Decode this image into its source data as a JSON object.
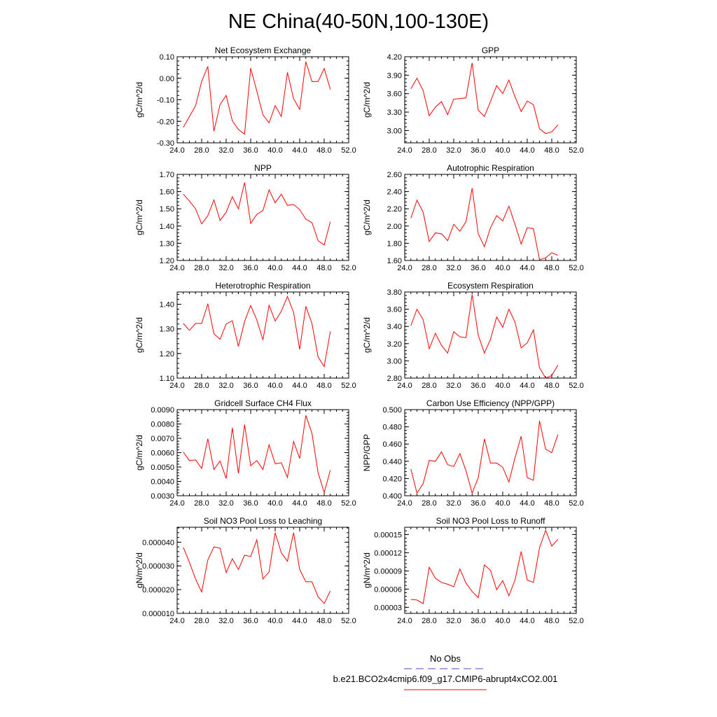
{
  "title": "NE China(40-50N,100-130E)",
  "colors": {
    "model_line": "#ff0000",
    "obs_line": "#4b4bc8",
    "axis": "#000000"
  },
  "legend": {
    "obs_label": "No Obs",
    "model_label": "b.e21.BCO2x4cmip6.f09_g17.CMIP6-abrupt4xCO2.001"
  },
  "chart_data": [
    {
      "type": "line",
      "title": "Net Ecosystem Exchange",
      "xlabel": "",
      "ylabel": "gC/m^2/d",
      "xlim": [
        24,
        52
      ],
      "ylim": [
        -0.3,
        0.1
      ],
      "xticks": [
        "24.0",
        "28.0",
        "32.0",
        "36.0",
        "40.0",
        "44.0",
        "48.0",
        "52.0"
      ],
      "yticks": [
        "-0.30",
        "-0.20",
        "-0.10",
        "0.00",
        "0.10"
      ],
      "x": [
        25,
        26,
        27,
        28,
        29,
        30,
        31,
        32,
        33,
        34,
        35,
        36,
        37,
        38,
        39,
        40,
        41,
        42,
        43,
        44,
        45,
        46,
        47,
        48,
        49
      ],
      "series": [
        {
          "name": "b.e21.BCO2x4cmip6.f09_g17.CMIP6-abrupt4xCO2.001",
          "values": [
            -0.228,
            -0.178,
            -0.128,
            -0.015,
            0.055,
            -0.246,
            -0.122,
            -0.08,
            -0.198,
            -0.238,
            -0.26,
            0.047,
            -0.06,
            -0.17,
            -0.207,
            -0.127,
            -0.178,
            0.027,
            -0.095,
            -0.145,
            0.077,
            -0.015,
            -0.015,
            0.045,
            -0.052
          ]
        }
      ]
    },
    {
      "type": "line",
      "title": "GPP",
      "xlabel": "",
      "ylabel": "gC/m^2/d",
      "xlim": [
        24,
        52
      ],
      "ylim": [
        2.8,
        4.2
      ],
      "xticks": [
        "24.0",
        "28.0",
        "32.0",
        "36.0",
        "40.0",
        "44.0",
        "48.0",
        "52.0"
      ],
      "yticks": [
        "3.00",
        "3.30",
        "3.60",
        "3.90",
        "4.20"
      ],
      "x": [
        25,
        26,
        27,
        28,
        29,
        30,
        31,
        32,
        33,
        34,
        35,
        36,
        37,
        38,
        39,
        40,
        41,
        42,
        43,
        44,
        45,
        46,
        47,
        48,
        49
      ],
      "series": [
        {
          "name": "b.e21.BCO2x4cmip6.f09_g17.CMIP6-abrupt4xCO2.001",
          "values": [
            3.68,
            3.85,
            3.65,
            3.24,
            3.38,
            3.47,
            3.26,
            3.51,
            3.52,
            3.53,
            4.1,
            3.33,
            3.23,
            3.47,
            3.73,
            3.6,
            3.82,
            3.55,
            3.31,
            3.48,
            3.42,
            3.03,
            2.95,
            2.98,
            3.09
          ]
        }
      ]
    },
    {
      "type": "line",
      "title": "NPP",
      "xlabel": "",
      "ylabel": "gC/m^2/d",
      "xlim": [
        24,
        52
      ],
      "ylim": [
        1.2,
        1.7
      ],
      "xticks": [
        "24.0",
        "28.0",
        "32.0",
        "36.0",
        "40.0",
        "44.0",
        "48.0",
        "52.0"
      ],
      "yticks": [
        "1.20",
        "1.30",
        "1.40",
        "1.50",
        "1.60",
        "1.70"
      ],
      "x": [
        25,
        26,
        27,
        28,
        29,
        30,
        31,
        32,
        33,
        34,
        35,
        36,
        37,
        38,
        39,
        40,
        41,
        42,
        43,
        44,
        45,
        46,
        47,
        48,
        49
      ],
      "series": [
        {
          "name": "b.e21.BCO2x4cmip6.f09_g17.CMIP6-abrupt4xCO2.001",
          "values": [
            1.585,
            1.545,
            1.5,
            1.412,
            1.46,
            1.552,
            1.432,
            1.48,
            1.57,
            1.5,
            1.653,
            1.415,
            1.468,
            1.49,
            1.61,
            1.535,
            1.585,
            1.52,
            1.525,
            1.495,
            1.44,
            1.42,
            1.315,
            1.29,
            1.425
          ]
        }
      ]
    },
    {
      "type": "line",
      "title": "Autotrophic Respiration",
      "xlabel": "",
      "ylabel": "gC/m^2/d",
      "xlim": [
        24,
        52
      ],
      "ylim": [
        1.6,
        2.6
      ],
      "xticks": [
        "24.0",
        "28.0",
        "32.0",
        "36.0",
        "40.0",
        "44.0",
        "48.0",
        "52.0"
      ],
      "yticks": [
        "1.60",
        "1.80",
        "2.00",
        "2.20",
        "2.40",
        "2.60"
      ],
      "x": [
        25,
        26,
        27,
        28,
        29,
        30,
        31,
        32,
        33,
        34,
        35,
        36,
        37,
        38,
        39,
        40,
        41,
        42,
        43,
        44,
        45,
        46,
        47,
        48,
        49
      ],
      "series": [
        {
          "name": "b.e21.BCO2x4cmip6.f09_g17.CMIP6-abrupt4xCO2.001",
          "values": [
            2.09,
            2.3,
            2.16,
            1.82,
            1.92,
            1.91,
            1.83,
            2.02,
            1.94,
            2.05,
            2.44,
            1.91,
            1.76,
            1.98,
            2.12,
            2.06,
            2.23,
            2.02,
            1.79,
            1.98,
            1.97,
            1.61,
            1.63,
            1.69,
            1.66
          ]
        }
      ]
    },
    {
      "type": "line",
      "title": "Heterotrophic Respiration",
      "xlabel": "",
      "ylabel": "gC/m^2/d",
      "xlim": [
        24,
        52
      ],
      "ylim": [
        1.1,
        1.45
      ],
      "xticks": [
        "24.0",
        "28.0",
        "32.0",
        "36.0",
        "40.0",
        "44.0",
        "48.0",
        "52.0"
      ],
      "yticks": [
        "1.10",
        "1.20",
        "1.30",
        "1.40"
      ],
      "x": [
        25,
        26,
        27,
        28,
        29,
        30,
        31,
        32,
        33,
        34,
        35,
        36,
        37,
        38,
        39,
        40,
        41,
        42,
        43,
        44,
        45,
        46,
        47,
        48,
        49
      ],
      "series": [
        {
          "name": "b.e21.BCO2x4cmip6.f09_g17.CMIP6-abrupt4xCO2.001",
          "values": [
            1.322,
            1.294,
            1.322,
            1.322,
            1.402,
            1.28,
            1.258,
            1.32,
            1.333,
            1.229,
            1.33,
            1.395,
            1.336,
            1.255,
            1.396,
            1.332,
            1.372,
            1.432,
            1.367,
            1.216,
            1.392,
            1.322,
            1.186,
            1.147,
            1.29
          ]
        }
      ]
    },
    {
      "type": "line",
      "title": "Ecosystem Respiration",
      "xlabel": "",
      "ylabel": "gC/m^2/d",
      "xlim": [
        24,
        52
      ],
      "ylim": [
        2.8,
        3.8
      ],
      "xticks": [
        "24.0",
        "28.0",
        "32.0",
        "36.0",
        "40.0",
        "44.0",
        "48.0",
        "52.0"
      ],
      "yticks": [
        "2.80",
        "3.00",
        "3.20",
        "3.40",
        "3.60",
        "3.80"
      ],
      "x": [
        25,
        26,
        27,
        28,
        29,
        30,
        31,
        32,
        33,
        34,
        35,
        36,
        37,
        38,
        39,
        40,
        41,
        42,
        43,
        44,
        45,
        46,
        47,
        48,
        49
      ],
      "series": [
        {
          "name": "b.e21.BCO2x4cmip6.f09_g17.CMIP6-abrupt4xCO2.001",
          "values": [
            3.41,
            3.6,
            3.48,
            3.14,
            3.32,
            3.18,
            3.09,
            3.34,
            3.28,
            3.27,
            3.77,
            3.3,
            3.09,
            3.25,
            3.51,
            3.39,
            3.6,
            3.45,
            3.15,
            3.21,
            3.36,
            2.92,
            2.8,
            2.83,
            2.95
          ]
        }
      ]
    },
    {
      "type": "line",
      "title": "Gridcell Surface CH4 Flux",
      "xlabel": "",
      "ylabel": "gC/m^2/d",
      "xlim": [
        24,
        52
      ],
      "ylim": [
        0.003,
        0.009
      ],
      "xticks": [
        "24.0",
        "28.0",
        "32.0",
        "36.0",
        "40.0",
        "44.0",
        "48.0",
        "52.0"
      ],
      "yticks": [
        "0.0030",
        "0.0040",
        "0.0050",
        "0.0060",
        "0.0070",
        "0.0080",
        "0.0090"
      ],
      "x": [
        25,
        26,
        27,
        28,
        29,
        30,
        31,
        32,
        33,
        34,
        35,
        36,
        37,
        38,
        39,
        40,
        41,
        42,
        43,
        44,
        45,
        46,
        47,
        48,
        49
      ],
      "series": [
        {
          "name": "b.e21.BCO2x4cmip6.f09_g17.CMIP6-abrupt4xCO2.001",
          "values": [
            0.00605,
            0.00545,
            0.0055,
            0.0049,
            0.00697,
            0.00483,
            0.00542,
            0.0042,
            0.00773,
            0.00455,
            0.00795,
            0.0051,
            0.00545,
            0.00482,
            0.00655,
            0.00523,
            0.0053,
            0.00428,
            0.00678,
            0.0056,
            0.0086,
            0.00735,
            0.0046,
            0.00322,
            0.00478
          ]
        }
      ]
    },
    {
      "type": "line",
      "title": "Carbon Use Efficiency (NPP/GPP)",
      "xlabel": "",
      "ylabel": "NPP/GPP",
      "xlim": [
        24,
        52
      ],
      "ylim": [
        0.4,
        0.5
      ],
      "xticks": [
        "24.0",
        "28.0",
        "32.0",
        "36.0",
        "40.0",
        "44.0",
        "48.0",
        "52.0"
      ],
      "yticks": [
        "0.400",
        "0.420",
        "0.440",
        "0.460",
        "0.480",
        "0.500"
      ],
      "x": [
        25,
        26,
        27,
        28,
        29,
        30,
        31,
        32,
        33,
        34,
        35,
        36,
        37,
        38,
        39,
        40,
        41,
        42,
        43,
        44,
        45,
        46,
        47,
        48,
        49
      ],
      "series": [
        {
          "name": "b.e21.BCO2x4cmip6.f09_g17.CMIP6-abrupt4xCO2.001",
          "values": [
            0.431,
            0.403,
            0.414,
            0.441,
            0.44,
            0.451,
            0.436,
            0.434,
            0.449,
            0.429,
            0.403,
            0.421,
            0.466,
            0.438,
            0.438,
            0.433,
            0.416,
            0.444,
            0.469,
            0.421,
            0.418,
            0.487,
            0.454,
            0.45,
            0.471
          ]
        }
      ]
    },
    {
      "type": "line",
      "title": "Soil NO3 Pool Loss to Leaching",
      "xlabel": "",
      "ylabel": "gN/m^2/d",
      "xlim": [
        24,
        52
      ],
      "ylim": [
        1e-05,
        4.63e-05
      ],
      "xticks": [
        "24.0",
        "28.0",
        "32.0",
        "36.0",
        "40.0",
        "44.0",
        "48.0",
        "52.0"
      ],
      "yticks": [
        "0.000010",
        "0.000020",
        "0.000030",
        "0.000040"
      ],
      "x": [
        25,
        26,
        27,
        28,
        29,
        30,
        31,
        32,
        33,
        34,
        35,
        36,
        37,
        38,
        39,
        40,
        41,
        42,
        43,
        44,
        45,
        46,
        47,
        48,
        49
      ],
      "series": [
        {
          "name": "b.e21.BCO2x4cmip6.f09_g17.CMIP6-abrupt4xCO2.001",
          "values": [
            3.78e-05,
            3.15e-05,
            2.45e-05,
            1.9e-05,
            3.25e-05,
            3.8e-05,
            3.75e-05,
            2.72e-05,
            3.3e-05,
            2.85e-05,
            3.45e-05,
            3.4e-05,
            4.1e-05,
            2.45e-05,
            2.75e-05,
            4.4e-05,
            3.55e-05,
            3.2e-05,
            4.4e-05,
            2.85e-05,
            2.33e-05,
            2.33e-05,
            1.7e-05,
            1.42e-05,
            1.95e-05
          ]
        }
      ]
    },
    {
      "type": "line",
      "title": "Soil NO3 Pool Loss to Runoff",
      "xlabel": "",
      "ylabel": "gN/m^2/d",
      "xlim": [
        24,
        52
      ],
      "ylim": [
        2e-05,
        0.000162
      ],
      "xticks": [
        "24.0",
        "28.0",
        "32.0",
        "36.0",
        "40.0",
        "44.0",
        "48.0",
        "52.0"
      ],
      "yticks": [
        "0.00003",
        "0.00006",
        "0.00009",
        "0.00012",
        "0.00015"
      ],
      "x": [
        25,
        26,
        27,
        28,
        29,
        30,
        31,
        32,
        33,
        34,
        35,
        36,
        37,
        38,
        39,
        40,
        41,
        42,
        43,
        44,
        45,
        46,
        47,
        48,
        49
      ],
      "series": [
        {
          "name": "b.e21.BCO2x4cmip6.f09_g17.CMIP6-abrupt4xCO2.001",
          "values": [
            4.3e-05,
            4.2e-05,
            3.6e-05,
            9.6e-05,
            7.8e-05,
            7.1e-05,
            6.8e-05,
            6.4e-05,
            9.3e-05,
            7e-05,
            5.6e-05,
            4.6e-05,
            0.0001,
            9.1e-05,
            5.9e-05,
            7.4e-05,
            4.9e-05,
            7.5e-05,
            0.000122,
            7.5e-05,
            7.1e-05,
            0.000128,
            0.000157,
            0.000131,
            0.000142
          ]
        }
      ]
    }
  ]
}
